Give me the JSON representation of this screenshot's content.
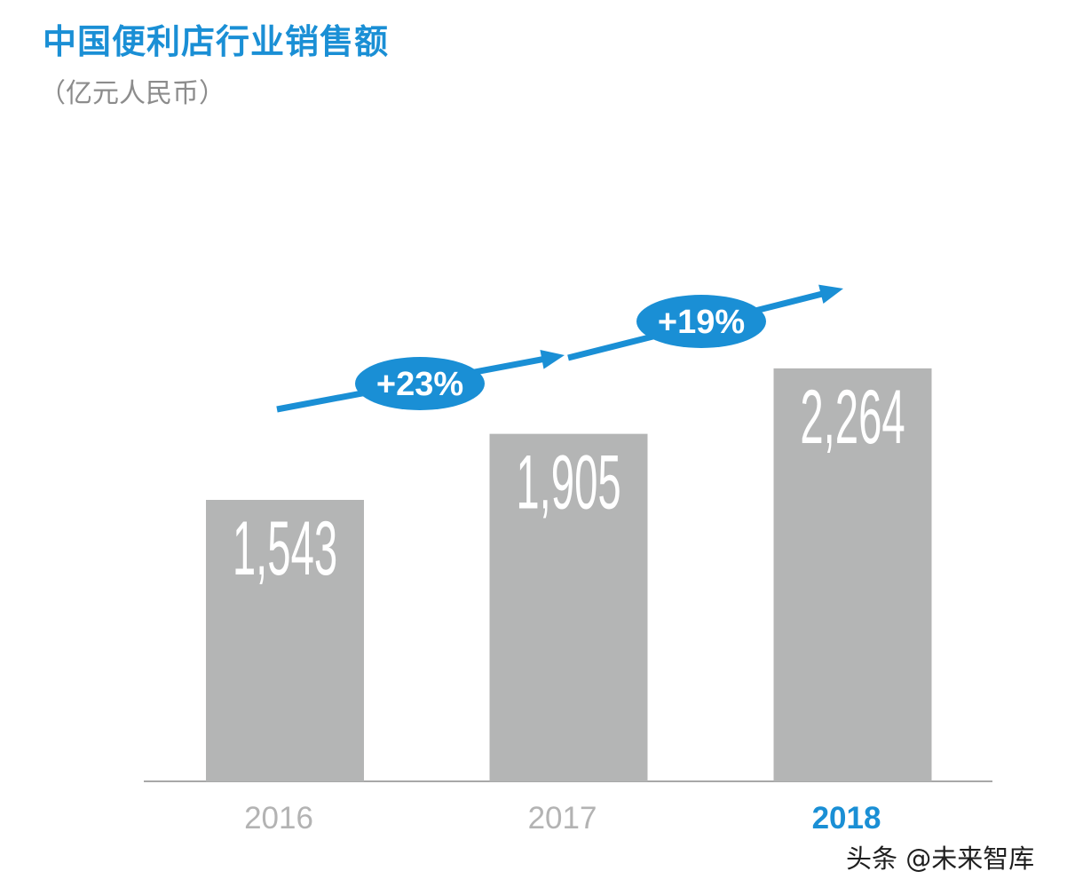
{
  "watermark": "头条 @未来智库",
  "colors": {
    "accent": "#1a8fd5",
    "bar": "#b4b5b5",
    "value_label": "#ffffff",
    "category_label": "#b3b3b3",
    "baseline": "#a8a8a8"
  },
  "chart_data": {
    "type": "bar",
    "title": "中国便利店行业销售额",
    "subtitle": "（亿元人民币）",
    "categories": [
      "2016",
      "2017",
      "2018"
    ],
    "values": [
      1543,
      1905,
      2264
    ],
    "value_labels": [
      "1,543",
      "1,905",
      "2,264"
    ],
    "highlight_category": "2018",
    "growth_annotations": [
      {
        "from": "2016",
        "to": "2017",
        "label": "+23%"
      },
      {
        "from": "2017",
        "to": "2018",
        "label": "+19%"
      }
    ],
    "grid": false,
    "legend": "none"
  }
}
